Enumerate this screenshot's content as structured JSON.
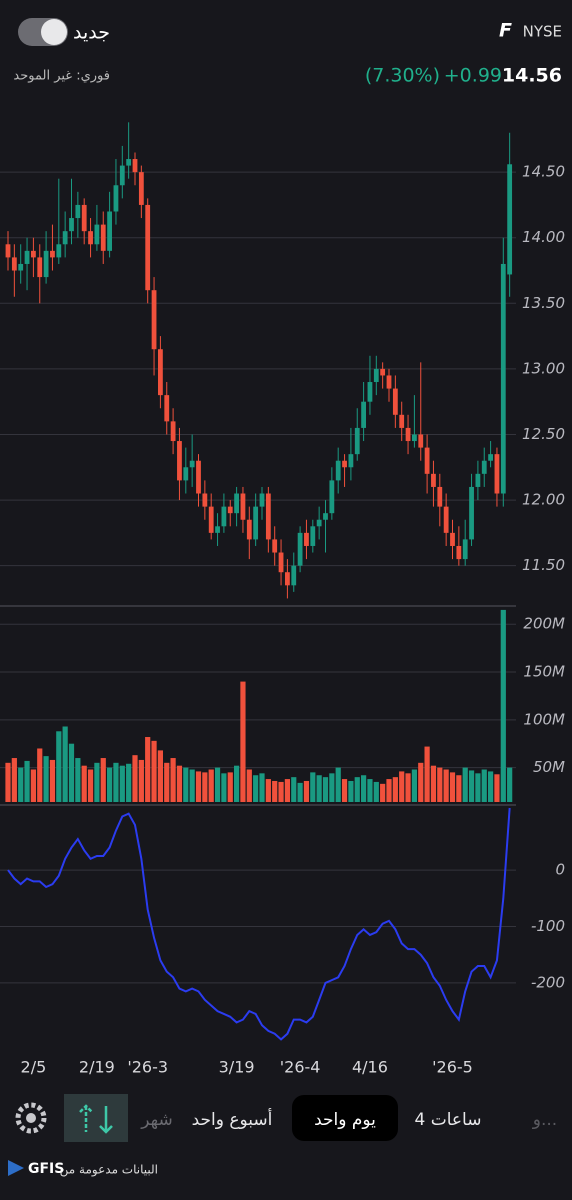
{
  "header": {
    "ticker": "F",
    "exchange": "NYSE",
    "new_label": "جديد",
    "price": "14.56",
    "change": "+0.99",
    "change_pct": "(7.30%)",
    "quote_type": "فوري: غير الموحد"
  },
  "tabs": [
    "و...",
    "4 ساعات",
    "يوم واحد",
    "أسبوع واحد",
    "شهر"
  ],
  "footer": {
    "text": "البيانات مدعومة من",
    "brand": "GFIS"
  },
  "chart_data": [
    {
      "type": "candlestick",
      "up_color": "#1a9a82",
      "down_color": "#f0513c",
      "grid": true,
      "ylim": [
        11.2,
        15.05
      ],
      "yticks": [
        {
          "value": 11.5,
          "label": "11.50"
        },
        {
          "value": 12,
          "label": "12.00"
        },
        {
          "value": 12.5,
          "label": "12.50"
        },
        {
          "value": 13,
          "label": "13.00"
        },
        {
          "value": 13.5,
          "label": "13.50"
        },
        {
          "value": 14,
          "label": "14.00"
        },
        {
          "value": 14.5,
          "label": "14.50"
        }
      ],
      "ohlc": [
        [
          13.95,
          14.05,
          13.75,
          13.85
        ],
        [
          13.85,
          13.95,
          13.55,
          13.75
        ],
        [
          13.75,
          13.95,
          13.65,
          13.8
        ],
        [
          13.8,
          14.0,
          13.6,
          13.9
        ],
        [
          13.9,
          14.0,
          13.7,
          13.85
        ],
        [
          13.85,
          13.95,
          13.5,
          13.7
        ],
        [
          13.7,
          14.05,
          13.65,
          13.9
        ],
        [
          13.9,
          14.1,
          13.75,
          13.85
        ],
        [
          13.85,
          14.45,
          13.8,
          13.95
        ],
        [
          13.95,
          14.2,
          13.85,
          14.05
        ],
        [
          14.05,
          14.45,
          13.95,
          14.15
        ],
        [
          14.15,
          14.35,
          14.0,
          14.25
        ],
        [
          14.25,
          14.3,
          13.95,
          14.05
        ],
        [
          14.05,
          14.15,
          13.85,
          13.95
        ],
        [
          13.95,
          14.25,
          13.9,
          14.1
        ],
        [
          14.1,
          14.2,
          13.8,
          13.9
        ],
        [
          13.9,
          14.35,
          13.85,
          14.2
        ],
        [
          14.2,
          14.6,
          14.1,
          14.4
        ],
        [
          14.4,
          14.7,
          14.3,
          14.55
        ],
        [
          14.55,
          14.88,
          14.45,
          14.6
        ],
        [
          14.6,
          14.65,
          14.4,
          14.5
        ],
        [
          14.5,
          14.55,
          14.15,
          14.25
        ],
        [
          14.25,
          14.3,
          13.5,
          13.6
        ],
        [
          13.6,
          13.7,
          12.95,
          13.15
        ],
        [
          13.15,
          13.25,
          12.7,
          12.8
        ],
        [
          12.8,
          12.9,
          12.5,
          12.6
        ],
        [
          12.6,
          12.7,
          12.35,
          12.45
        ],
        [
          12.45,
          12.55,
          12.0,
          12.15
        ],
        [
          12.15,
          12.4,
          12.05,
          12.25
        ],
        [
          12.25,
          12.5,
          12.1,
          12.3
        ],
        [
          12.3,
          12.35,
          11.95,
          12.05
        ],
        [
          12.05,
          12.15,
          11.85,
          11.95
        ],
        [
          11.95,
          12.05,
          11.7,
          11.75
        ],
        [
          11.75,
          11.9,
          11.65,
          11.8
        ],
        [
          11.8,
          12.05,
          11.75,
          11.95
        ],
        [
          11.95,
          12.0,
          11.8,
          11.9
        ],
        [
          11.9,
          12.1,
          11.8,
          12.05
        ],
        [
          12.05,
          12.1,
          11.75,
          11.85
        ],
        [
          11.85,
          11.95,
          11.55,
          11.7
        ],
        [
          11.7,
          12.05,
          11.65,
          11.95
        ],
        [
          11.95,
          12.1,
          11.85,
          12.05
        ],
        [
          12.05,
          12.1,
          11.6,
          11.7
        ],
        [
          11.7,
          11.8,
          11.5,
          11.6
        ],
        [
          11.6,
          11.7,
          11.35,
          11.45
        ],
        [
          11.45,
          11.55,
          11.25,
          11.35
        ],
        [
          11.35,
          11.6,
          11.3,
          11.5
        ],
        [
          11.5,
          11.8,
          11.45,
          11.75
        ],
        [
          11.75,
          11.85,
          11.55,
          11.65
        ],
        [
          11.65,
          11.85,
          11.6,
          11.8
        ],
        [
          11.8,
          11.95,
          11.7,
          11.85
        ],
        [
          11.85,
          12.0,
          11.6,
          11.9
        ],
        [
          11.9,
          12.25,
          11.85,
          12.15
        ],
        [
          12.15,
          12.4,
          12.05,
          12.3
        ],
        [
          12.3,
          12.35,
          12.1,
          12.25
        ],
        [
          12.25,
          12.55,
          12.15,
          12.35
        ],
        [
          12.35,
          12.7,
          12.3,
          12.55
        ],
        [
          12.55,
          12.9,
          12.45,
          12.75
        ],
        [
          12.75,
          13.1,
          12.65,
          12.9
        ],
        [
          12.9,
          13.1,
          12.8,
          13.0
        ],
        [
          13.0,
          13.05,
          12.85,
          12.95
        ],
        [
          12.95,
          13.0,
          12.75,
          12.85
        ],
        [
          12.85,
          12.95,
          12.55,
          12.65
        ],
        [
          12.65,
          12.75,
          12.45,
          12.55
        ],
        [
          12.55,
          12.65,
          12.35,
          12.45
        ],
        [
          12.45,
          12.8,
          12.4,
          12.5
        ],
        [
          12.5,
          13.05,
          12.3,
          12.4
        ],
        [
          12.4,
          12.5,
          12.05,
          12.2
        ],
        [
          12.2,
          12.3,
          11.95,
          12.1
        ],
        [
          12.1,
          12.2,
          11.8,
          11.95
        ],
        [
          11.95,
          12.05,
          11.65,
          11.75
        ],
        [
          11.75,
          11.85,
          11.55,
          11.65
        ],
        [
          11.65,
          11.8,
          11.5,
          11.55
        ],
        [
          11.55,
          11.85,
          11.5,
          11.7
        ],
        [
          11.7,
          12.2,
          11.65,
          12.1
        ],
        [
          12.1,
          12.3,
          12.0,
          12.2
        ],
        [
          12.2,
          12.4,
          12.1,
          12.3
        ],
        [
          12.3,
          12.45,
          12.25,
          12.35
        ],
        [
          12.35,
          12.4,
          11.95,
          12.05
        ],
        [
          12.05,
          14.0,
          11.95,
          13.8
        ],
        [
          13.72,
          14.8,
          13.55,
          14.56
        ]
      ]
    },
    {
      "type": "bar",
      "grid": true,
      "ylim": [
        14,
        217
      ],
      "yticks": [
        {
          "value": 50,
          "label": "50M"
        },
        {
          "value": 100,
          "label": "100M"
        },
        {
          "value": 150,
          "label": "150M"
        },
        {
          "value": 200,
          "label": "200M"
        }
      ],
      "values": [
        55,
        60,
        50,
        57,
        48,
        70,
        62,
        58,
        88,
        93,
        75,
        60,
        52,
        48,
        55,
        60,
        50,
        55,
        52,
        54,
        63,
        58,
        82,
        78,
        68,
        55,
        60,
        52,
        50,
        48,
        46,
        45,
        48,
        50,
        44,
        45,
        52,
        140,
        48,
        42,
        44,
        38,
        36,
        35,
        38,
        40,
        34,
        36,
        45,
        42,
        40,
        44,
        50,
        38,
        36,
        40,
        42,
        38,
        35,
        33,
        38,
        40,
        46,
        44,
        48,
        55,
        72,
        52,
        50,
        48,
        45,
        42,
        50,
        47,
        44,
        48,
        46,
        43,
        215,
        50
      ]
    },
    {
      "type": "line",
      "color": "#2b3cf0",
      "grid": true,
      "ylim": [
        -310,
        110
      ],
      "yticks": [
        -200,
        -100,
        0
      ],
      "categories": [
        null,
        null,
        null,
        null,
        "2/5",
        null,
        null,
        null,
        null,
        null,
        null,
        null,
        null,
        null,
        "2/19",
        null,
        null,
        null,
        null,
        null,
        null,
        null,
        "'26-3",
        null,
        null,
        null,
        null,
        null,
        null,
        null,
        null,
        null,
        null,
        null,
        null,
        null,
        "3/19",
        null,
        null,
        null,
        null,
        null,
        null,
        null,
        null,
        null,
        "'26-4",
        null,
        null,
        null,
        null,
        null,
        null,
        null,
        null,
        null,
        null,
        "4/16",
        null,
        null,
        null,
        null,
        null,
        null,
        null,
        null,
        null,
        null,
        null,
        null,
        "'26-5",
        null,
        null,
        null,
        null,
        null,
        null,
        null,
        null,
        null
      ],
      "values": [
        0,
        -15,
        -25,
        -15,
        -20,
        -20,
        -30,
        -25,
        -10,
        20,
        40,
        55,
        35,
        20,
        25,
        25,
        40,
        70,
        95,
        100,
        80,
        20,
        -70,
        -120,
        -160,
        -180,
        -190,
        -210,
        -215,
        -210,
        -215,
        -230,
        -240,
        -250,
        -255,
        -260,
        -270,
        -265,
        -250,
        -255,
        -275,
        -285,
        -290,
        -300,
        -290,
        -265,
        -265,
        -270,
        -260,
        -230,
        -200,
        -195,
        -190,
        -170,
        -140,
        -115,
        -105,
        -115,
        -110,
        -95,
        -90,
        -105,
        -130,
        -140,
        -140,
        -150,
        -165,
        -190,
        -205,
        -230,
        -250,
        -265,
        -215,
        -180,
        -170,
        -170,
        -190,
        -160,
        -50,
        110
      ]
    }
  ]
}
